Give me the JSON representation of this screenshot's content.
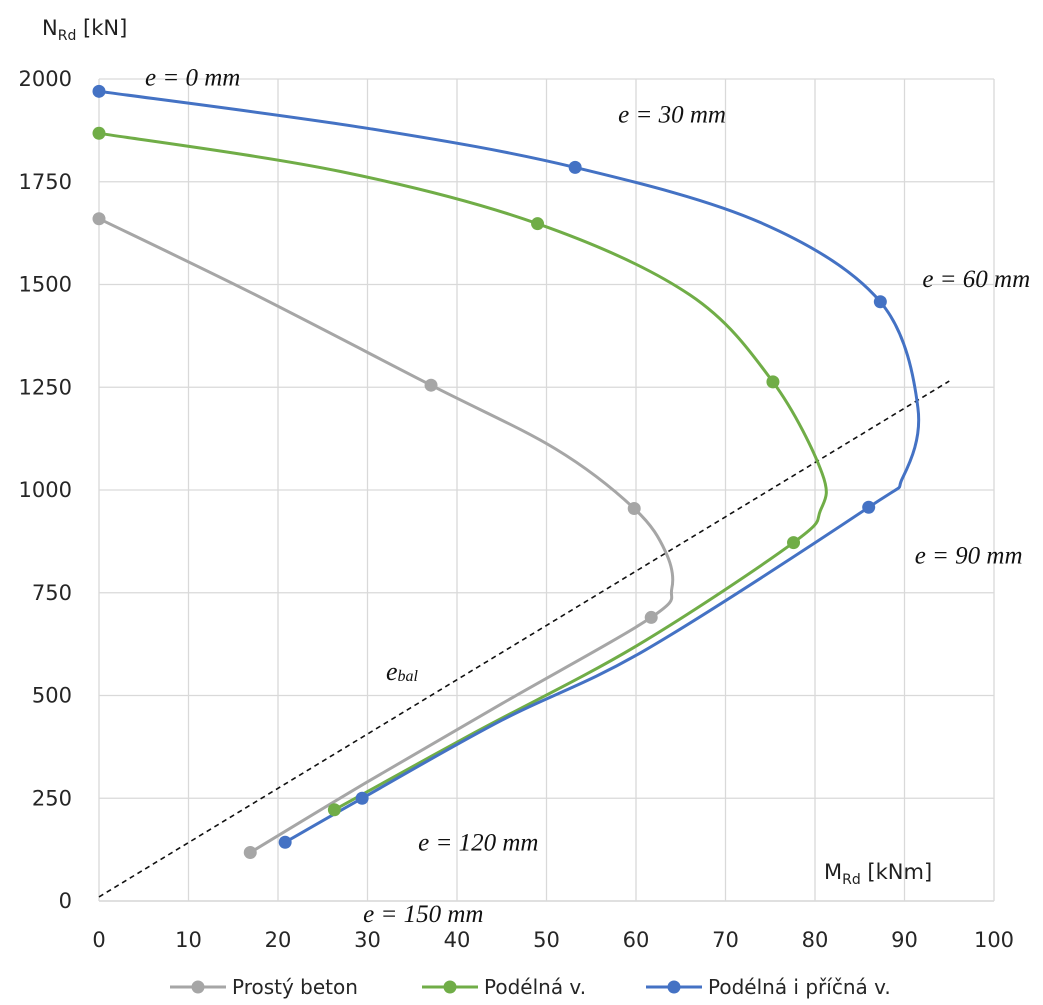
{
  "chart_data": {
    "type": "line",
    "x_label": {
      "main": "M",
      "sub": "Rd",
      "unit": " [kNm]"
    },
    "y_label": {
      "main": "N",
      "sub": "Rd",
      "unit": " [kN]"
    },
    "xlim": [
      0,
      100
    ],
    "ylim": [
      0,
      2000
    ],
    "x_ticks": [
      "0",
      "10",
      "20",
      "30",
      "40",
      "50",
      "60",
      "70",
      "80",
      "90",
      "100"
    ],
    "y_ticks": [
      "0",
      "250",
      "500",
      "750",
      "1000",
      "1250",
      "1500",
      "1750",
      "2000"
    ],
    "grid": true,
    "legend_position": "bottom",
    "series": [
      {
        "name": "Prostý beton",
        "color": "#a6a6a6",
        "points": [
          [
            0,
            1660
          ],
          [
            37.1,
            1255
          ],
          [
            59.8,
            955
          ],
          [
            61.7,
            690
          ],
          [
            16.9,
            118
          ]
        ],
        "curve": [
          [
            0,
            1660
          ],
          [
            17,
            1480
          ],
          [
            37.1,
            1255
          ],
          [
            51,
            1100
          ],
          [
            59.8,
            955
          ],
          [
            63.3,
            850
          ],
          [
            64,
            760
          ],
          [
            61.7,
            690
          ],
          [
            45,
            480
          ],
          [
            30,
            290
          ],
          [
            16.9,
            118
          ]
        ]
      },
      {
        "name": "Podélná v.",
        "color": "#70ad47",
        "points": [
          [
            0,
            1868
          ],
          [
            49,
            1648
          ],
          [
            75.3,
            1263
          ],
          [
            77.6,
            872
          ],
          [
            26.3,
            222
          ]
        ],
        "curve": [
          [
            0,
            1868
          ],
          [
            27,
            1775
          ],
          [
            49,
            1648
          ],
          [
            66,
            1475
          ],
          [
            75.3,
            1263
          ],
          [
            80.8,
            1040
          ],
          [
            80.6,
            950
          ],
          [
            77.6,
            872
          ],
          [
            60,
            620
          ],
          [
            42,
            410
          ],
          [
            26.3,
            222
          ]
        ]
      },
      {
        "name": "Podélná i příčná v.",
        "color": "#4472c4",
        "points": [
          [
            0,
            1970
          ],
          [
            53.2,
            1785
          ],
          [
            87.3,
            1458
          ],
          [
            86,
            958
          ],
          [
            29.4,
            250
          ],
          [
            20.8,
            143
          ]
        ],
        "curve": [
          [
            0,
            1970
          ],
          [
            30,
            1880
          ],
          [
            53.2,
            1785
          ],
          [
            74,
            1650
          ],
          [
            87.3,
            1458
          ],
          [
            91.5,
            1200
          ],
          [
            89.8,
            1030
          ],
          [
            86,
            958
          ],
          [
            61,
            610
          ],
          [
            45,
            440
          ],
          [
            29.4,
            250
          ],
          [
            20.8,
            143
          ]
        ]
      }
    ],
    "reference_line": {
      "label_main": "e",
      "label_sub": "bal",
      "from": [
        0,
        10
      ],
      "to": [
        95,
        1265
      ]
    },
    "annotations": [
      {
        "text": "e = 0 mm",
        "x": 0,
        "y": 1970
      },
      {
        "text": "e = 30 mm",
        "x": 53.2,
        "y": 1785
      },
      {
        "text": "e = 60 mm",
        "x": 87.3,
        "y": 1458
      },
      {
        "text": "e = 90 mm",
        "x": 86,
        "y": 958
      },
      {
        "text": "e = 120 mm",
        "x": 29.4,
        "y": 250
      },
      {
        "text": "e = 150 mm",
        "x": 20.8,
        "y": 143
      }
    ]
  }
}
